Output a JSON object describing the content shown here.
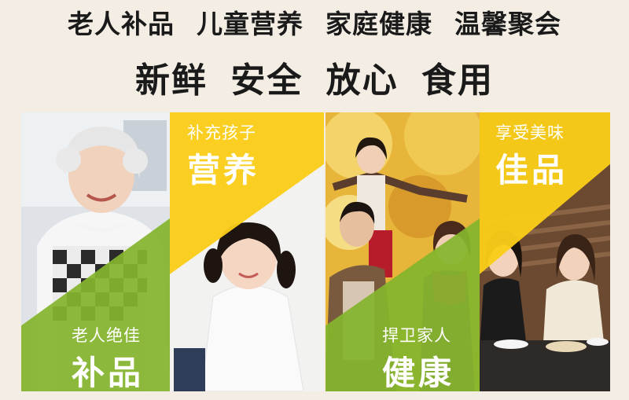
{
  "headline": {
    "line1": [
      "老人补品",
      "儿童营养",
      "家庭健康",
      "温馨聚会"
    ],
    "line2": [
      "新鲜",
      "安全",
      "放心",
      "食用"
    ]
  },
  "panels": [
    {
      "small": "老人绝佳",
      "big": "补品",
      "overlay": "green-bottom"
    },
    {
      "small": "补充孩子",
      "big": "营养",
      "overlay": "yellow-top"
    },
    {
      "small": "捍卫家人",
      "big": "健康",
      "overlay": "green-bottom"
    },
    {
      "small": "享受美味",
      "big": "佳品",
      "overlay": "yellow-top"
    }
  ],
  "colors": {
    "green": "#84b52d",
    "yellow": "#facd18",
    "background": "#f3ede4"
  }
}
